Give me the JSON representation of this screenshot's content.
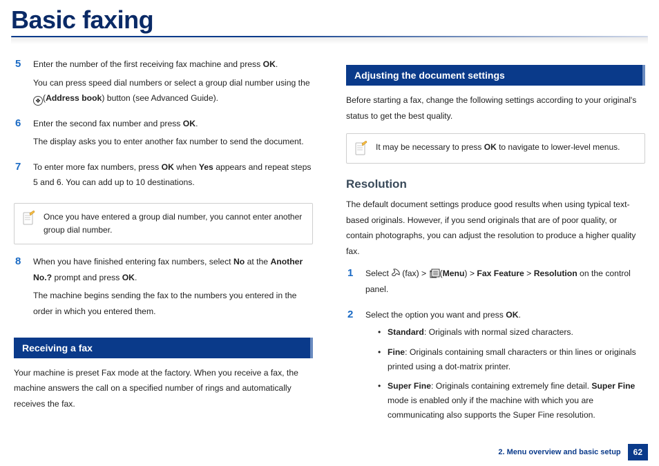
{
  "title": "Basic faxing",
  "left": {
    "steps": [
      {
        "num": "5",
        "lines": [
          "Enter the number of the first receiving fax machine and press <b>OK</b>.",
          "You can press speed dial numbers or select a group dial number using the {ADDR}(<b>Address book</b>) button (see Advanced Guide)."
        ]
      },
      {
        "num": "6",
        "lines": [
          "Enter the second fax number and press <b>OK</b>.",
          "The display asks you to enter another fax number to send the document."
        ]
      },
      {
        "num": "7",
        "lines": [
          "To enter more fax numbers, press <b>OK</b> when <b>Yes</b> appears and repeat steps 5 and 6. You can add up to 10 destinations."
        ]
      }
    ],
    "note": "Once you have entered a group dial number, you cannot enter another group dial number.",
    "steps2": [
      {
        "num": "8",
        "lines": [
          "When you have finished entering fax numbers, select <b>No</b> at the <b>Another No.?</b> prompt and press <b>OK</b>.",
          "The machine begins sending the fax to the numbers you entered in the order in which you entered them."
        ]
      }
    ],
    "section": "Receiving a fax",
    "sectionBody": "Your machine is preset Fax mode at the factory. When you receive a fax, the machine answers the call on a specified number of rings and automatically receives the fax."
  },
  "right": {
    "section": "Adjusting the document settings",
    "sectionBody": "Before starting a fax, change the following settings according to your original's status to get the best quality.",
    "note": "It may be necessary to press <b>OK</b> to navigate to lower-level menus.",
    "subhead": "Resolution",
    "subBody": "The default document settings produce good results when using typical text-based originals. However, if you send originals that are of poor quality, or contain photographs, you can adjust the resolution to produce a higher quality fax.",
    "steps": [
      {
        "num": "1",
        "lines": [
          "Select {FAX}(fax) > {MENU}(<b>Menu</b>) > <b>Fax Feature</b> > <b>Resolution</b> on the control panel."
        ]
      },
      {
        "num": "2",
        "lines": [
          "Select the option you want and press <b>OK</b>."
        ],
        "opts": [
          "<b>Standard</b>: Originals with normal sized characters.",
          "<b>Fine</b>: Originals containing small characters or thin lines or originals printed using a dot-matrix printer.",
          "<b>Super Fine</b>: Originals containing extremely fine detail. <b>Super Fine</b> mode is enabled only if the machine with which you are communicating also supports the Super Fine resolution."
        ]
      }
    ]
  },
  "footer": {
    "label": "2. Menu overview and basic setup",
    "page": "62"
  }
}
